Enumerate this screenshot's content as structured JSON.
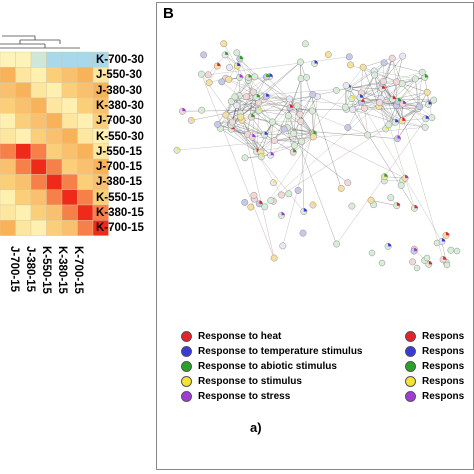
{
  "panel_b": {
    "letter": "B",
    "sub_label": "a)",
    "legend_left": [
      {
        "label": "Response to heat",
        "color": "#e8202a"
      },
      {
        "label": "Response to temperature stimulus",
        "color": "#3a3ad8"
      },
      {
        "label": "Response to abiotic stimulus",
        "color": "#27a327"
      },
      {
        "label": "Response to stimulus",
        "color": "#f2e23a"
      },
      {
        "label": "Response to stress",
        "color": "#a23ad8"
      }
    ],
    "legend_right": [
      {
        "label": "Respons",
        "color": "#e8202a"
      },
      {
        "label": "Respons",
        "color": "#3a3ad8"
      },
      {
        "label": "Respons",
        "color": "#27a327"
      },
      {
        "label": "Respons",
        "color": "#f2e23a"
      },
      {
        "label": "Respons",
        "color": "#a23ad8"
      }
    ]
  },
  "heatmap": {
    "row_labels": [
      "K-700-30",
      "J-550-30",
      "J-380-30",
      "K-380-30",
      "J-700-30",
      "K-550-30",
      "J-550-15",
      "J-700-15",
      "J-380-15",
      "K-550-15",
      "K-380-15",
      "K-700-15"
    ],
    "col_labels": [
      "J-700-15",
      "J-380-15",
      "K-550-15",
      "K-380-15",
      "K-700-15"
    ],
    "colors": {
      "low": "#fdf0a0",
      "mid": "#f8b35a",
      "high": "#ee2a1a",
      "lowest": "#a8d8ea"
    }
  }
}
